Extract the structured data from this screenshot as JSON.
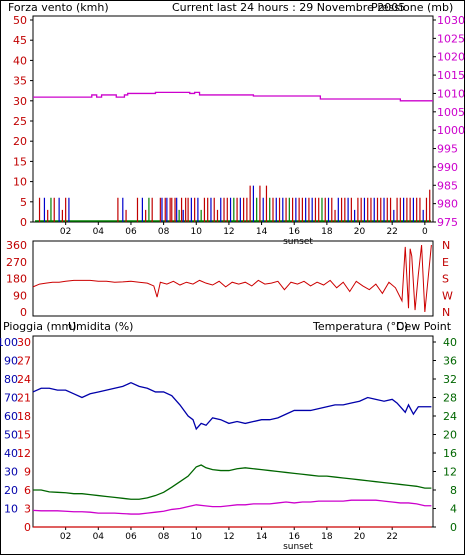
{
  "header": {
    "wind_label": "Forza vento (kmh)",
    "title": "Current last 24 hours : 29 Novembre 2005",
    "pressure_label": "Pressione (mb)"
  },
  "footer_labels": {
    "sunset": "sunset"
  },
  "lower_header": {
    "rain_label": "Pioggia (mm)",
    "humidity_label": "Umidita (%)",
    "temp_label": "Temperatura (°C)",
    "dewpoint_label": "Dew Point"
  },
  "colors": {
    "wind": "#c00000",
    "pressure": "#cc00cc",
    "gust": "#0000cc",
    "calm": "#008000",
    "direction": "#cc0000",
    "rain": "#cc0000",
    "humidity": "#0000aa",
    "temperature": "#006600",
    "dewpoint": "#cc00cc",
    "temp_axis": "#006600",
    "frame": "#000000"
  },
  "chart_data": [
    {
      "id": "wind_pressure",
      "type": "line",
      "x_ticks": [
        "02",
        "04",
        "06",
        "08",
        "10",
        "12",
        "14",
        "16",
        "18",
        "20",
        "22",
        "0"
      ],
      "x_hours": [
        2,
        4,
        6,
        8,
        10,
        12,
        14,
        16,
        18,
        20,
        22,
        24
      ],
      "xlim": [
        0,
        24.5
      ],
      "left_axis": {
        "label": "Forza vento (kmh)",
        "ticks": [
          0,
          5,
          10,
          15,
          20,
          25,
          30,
          35,
          40,
          45,
          50
        ],
        "range": [
          0,
          50
        ]
      },
      "right_axis": {
        "label": "Pressione (mb)",
        "ticks": [
          975,
          980,
          985,
          990,
          995,
          1000,
          1005,
          1010,
          1015,
          1020,
          1025,
          1030
        ],
        "range": [
          975,
          1030
        ]
      },
      "series": [
        {
          "name": "Pressione (mb)",
          "axis": "right",
          "x": [
            0,
            3.6,
            3.6,
            3.9,
            3.9,
            4.2,
            4.2,
            5.1,
            5.1,
            5.6,
            5.6,
            5.8,
            5.8,
            7.5,
            7.5,
            9.6,
            9.6,
            9.9,
            9.9,
            10.2,
            10.2,
            13.5,
            13.5,
            17.6,
            17.6,
            22.5,
            22.5,
            24.5
          ],
          "y": [
            1009,
            1009,
            1009.6,
            1009.6,
            1009,
            1009,
            1009.6,
            1009.6,
            1009,
            1009,
            1009.6,
            1009.6,
            1010,
            1010,
            1010.3,
            1010.3,
            1010,
            1010,
            1010.3,
            1010.3,
            1009.6,
            1009.6,
            1009.3,
            1009.3,
            1008.5,
            1008.5,
            1008,
            1008
          ]
        }
      ],
      "bars_note": "vertical bars of wind speed and gust from about 00:30 to 24:30",
      "wind_events": [
        [
          0.4,
          6,
          0
        ],
        [
          0.7,
          6,
          1
        ],
        [
          0.9,
          3,
          0
        ],
        [
          1.1,
          6,
          2
        ],
        [
          1.3,
          6,
          0
        ],
        [
          1.6,
          6,
          1
        ],
        [
          1.8,
          3,
          0
        ],
        [
          2.0,
          6,
          0
        ],
        [
          2.2,
          6,
          1
        ],
        [
          5.2,
          6,
          0
        ],
        [
          5.5,
          6,
          1
        ],
        [
          5.7,
          3,
          0
        ],
        [
          6.4,
          6,
          0
        ],
        [
          6.7,
          6,
          1
        ],
        [
          6.9,
          3,
          0
        ],
        [
          7.1,
          6,
          2
        ],
        [
          7.3,
          6,
          0
        ],
        [
          7.8,
          6,
          0
        ],
        [
          7.9,
          6,
          1
        ],
        [
          8.1,
          6,
          0
        ],
        [
          8.2,
          6,
          1
        ],
        [
          8.4,
          6,
          0
        ],
        [
          8.5,
          6,
          0
        ],
        [
          8.7,
          6,
          0
        ],
        [
          8.8,
          6,
          1
        ],
        [
          8.95,
          3,
          2
        ],
        [
          9.1,
          6,
          0
        ],
        [
          9.2,
          3,
          1
        ],
        [
          9.35,
          6,
          0
        ],
        [
          9.5,
          6,
          0
        ],
        [
          9.7,
          6,
          1
        ],
        [
          9.9,
          6,
          0
        ],
        [
          10.1,
          6,
          1
        ],
        [
          10.3,
          3,
          2
        ],
        [
          10.5,
          6,
          0
        ],
        [
          10.7,
          6,
          0
        ],
        [
          10.9,
          6,
          1
        ],
        [
          11.1,
          6,
          0
        ],
        [
          11.3,
          3,
          0
        ],
        [
          11.5,
          6,
          1
        ],
        [
          11.7,
          6,
          0
        ],
        [
          11.9,
          6,
          0
        ],
        [
          12.1,
          6,
          1
        ],
        [
          12.3,
          6,
          2
        ],
        [
          12.5,
          6,
          0
        ],
        [
          12.7,
          6,
          1
        ],
        [
          12.9,
          6,
          0
        ],
        [
          13.1,
          6,
          0
        ],
        [
          13.3,
          9,
          0
        ],
        [
          13.5,
          9,
          1
        ],
        [
          13.7,
          6,
          2
        ],
        [
          13.9,
          9,
          0
        ],
        [
          14.1,
          6,
          1
        ],
        [
          14.3,
          9,
          0
        ],
        [
          14.5,
          6,
          2
        ],
        [
          14.7,
          6,
          0
        ],
        [
          14.9,
          6,
          1
        ],
        [
          15.1,
          6,
          0
        ],
        [
          15.3,
          6,
          1
        ],
        [
          15.5,
          6,
          0
        ],
        [
          15.7,
          6,
          2
        ],
        [
          15.9,
          6,
          0
        ],
        [
          16.1,
          6,
          1
        ],
        [
          16.3,
          6,
          0
        ],
        [
          16.5,
          6,
          0
        ],
        [
          16.7,
          6,
          1
        ],
        [
          16.9,
          6,
          0
        ],
        [
          17.1,
          6,
          1
        ],
        [
          17.3,
          6,
          0
        ],
        [
          17.5,
          6,
          0
        ],
        [
          17.7,
          6,
          2
        ],
        [
          17.9,
          6,
          0
        ],
        [
          18.1,
          6,
          1
        ],
        [
          18.3,
          6,
          0
        ],
        [
          18.5,
          3,
          0
        ],
        [
          18.7,
          6,
          1
        ],
        [
          18.9,
          6,
          0
        ],
        [
          19.1,
          6,
          0
        ],
        [
          19.3,
          6,
          1
        ],
        [
          19.5,
          6,
          0
        ],
        [
          19.7,
          3,
          1
        ],
        [
          19.9,
          6,
          0
        ],
        [
          20.1,
          6,
          0
        ],
        [
          20.3,
          6,
          1
        ],
        [
          20.5,
          6,
          0
        ],
        [
          20.7,
          6,
          0
        ],
        [
          20.9,
          6,
          1
        ],
        [
          21.1,
          6,
          0
        ],
        [
          21.3,
          6,
          0
        ],
        [
          21.5,
          6,
          1
        ],
        [
          21.7,
          6,
          0
        ],
        [
          21.9,
          6,
          0
        ],
        [
          22.1,
          3,
          1
        ],
        [
          22.3,
          6,
          0
        ],
        [
          22.5,
          6,
          0
        ],
        [
          22.7,
          6,
          1
        ],
        [
          22.9,
          6,
          0
        ],
        [
          23.1,
          6,
          0
        ],
        [
          23.3,
          6,
          1
        ],
        [
          23.5,
          6,
          0
        ],
        [
          23.7,
          6,
          0
        ],
        [
          23.9,
          3,
          1
        ],
        [
          24.1,
          6,
          0
        ],
        [
          24.3,
          8,
          0
        ]
      ]
    },
    {
      "id": "wind_direction",
      "type": "line",
      "left_axis": {
        "ticks": [
          0,
          90,
          180,
          270,
          360
        ],
        "range": [
          0,
          360
        ]
      },
      "right_axis": {
        "ticks": [
          "N",
          "E",
          "S",
          "W",
          "N"
        ]
      },
      "series": [
        {
          "name": "Direzione",
          "x": [
            0,
            0.4,
            0.8,
            1.2,
            1.6,
            2,
            2.5,
            3,
            3.5,
            4,
            4.5,
            5,
            5.5,
            6,
            6.5,
            7,
            7.4,
            7.6,
            7.8,
            8.2,
            8.6,
            9,
            9.4,
            9.8,
            10.2,
            10.6,
            11,
            11.4,
            11.8,
            12.2,
            12.6,
            13,
            13.4,
            13.8,
            14.2,
            14.6,
            15,
            15.4,
            15.8,
            16.2,
            16.6,
            17,
            17.4,
            17.8,
            18.2,
            18.6,
            19,
            19.4,
            19.8,
            20.2,
            20.6,
            21,
            21.4,
            21.8,
            22.2,
            22.6,
            22.8,
            23,
            23.1,
            23.2,
            23.4,
            23.6,
            23.8,
            24,
            24.2,
            24.4
          ],
          "y": [
            135,
            150,
            155,
            160,
            160,
            165,
            170,
            170,
            170,
            165,
            165,
            160,
            162,
            165,
            160,
            155,
            140,
            80,
            160,
            150,
            165,
            145,
            160,
            150,
            170,
            155,
            145,
            165,
            135,
            160,
            150,
            160,
            140,
            170,
            150,
            155,
            165,
            120,
            160,
            150,
            165,
            140,
            160,
            145,
            170,
            130,
            160,
            110,
            165,
            140,
            120,
            150,
            100,
            160,
            130,
            60,
            350,
            20,
            340,
            300,
            10,
            200,
            360,
            0,
            180,
            360
          ]
        }
      ]
    },
    {
      "id": "rain_humidity_temp",
      "type": "line",
      "x_ticks": [
        "02",
        "04",
        "06",
        "08",
        "10",
        "12",
        "14",
        "16",
        "18",
        "20",
        "22"
      ],
      "x_hours": [
        2,
        4,
        6,
        8,
        10,
        12,
        14,
        16,
        18,
        20,
        22
      ],
      "xlim": [
        0,
        24.5
      ],
      "rain_axis": {
        "label": "Pioggia (mm)",
        "ticks": [
          0,
          3,
          6,
          9,
          12,
          15,
          18,
          21,
          24,
          27,
          30
        ],
        "range": [
          0,
          30
        ]
      },
      "humidity_axis": {
        "label": "Umidita (%)",
        "ticks": [
          10,
          20,
          30,
          40,
          50,
          60,
          70,
          80,
          90,
          100
        ],
        "range": [
          0,
          100
        ]
      },
      "temp_axis": {
        "label": "Temperatura (°C)",
        "ticks": [
          0,
          4,
          8,
          12,
          16,
          20,
          24,
          28,
          32,
          36,
          40
        ],
        "range": [
          0,
          40
        ]
      },
      "series": [
        {
          "name": "Umidita (%)",
          "axis": "humidity",
          "x": [
            0,
            0.5,
            1,
            1.5,
            2,
            2.5,
            3,
            3.5,
            4,
            4.5,
            5,
            5.5,
            6,
            6.5,
            7,
            7.5,
            8,
            8.5,
            9,
            9.5,
            9.8,
            10,
            10.3,
            10.6,
            11,
            11.5,
            12,
            12.5,
            13,
            13.5,
            14,
            14.5,
            15,
            15.5,
            16,
            16.5,
            17,
            17.5,
            18,
            18.5,
            19,
            19.5,
            20,
            20.5,
            21,
            21.5,
            22,
            22.3,
            22.6,
            22.8,
            23,
            23.3,
            23.6,
            24,
            24.4
          ],
          "y": [
            73,
            75,
            75,
            74,
            74,
            72,
            70,
            72,
            73,
            74,
            75,
            76,
            78,
            76,
            75,
            73,
            73,
            71,
            66,
            60,
            58,
            53,
            56,
            55,
            59,
            58,
            56,
            57,
            56,
            57,
            58,
            58,
            59,
            61,
            63,
            63,
            63,
            64,
            65,
            66,
            66,
            67,
            68,
            70,
            69,
            68,
            69,
            67,
            64,
            62,
            66,
            61,
            65,
            65,
            65
          ]
        },
        {
          "name": "Temperatura (°C)",
          "axis": "temp",
          "x": [
            0,
            0.5,
            1,
            1.5,
            2,
            2.5,
            3,
            3.5,
            4,
            4.5,
            5,
            5.5,
            6,
            6.5,
            7,
            7.5,
            8,
            8.5,
            9,
            9.5,
            10,
            10.3,
            10.6,
            11,
            11.5,
            12,
            12.5,
            13,
            13.5,
            14,
            14.5,
            15,
            15.5,
            16,
            16.5,
            17,
            17.5,
            18,
            18.5,
            19,
            19.5,
            20,
            20.5,
            21,
            21.5,
            22,
            22.5,
            23,
            23.5,
            24,
            24.4
          ],
          "y": [
            8,
            8,
            7.6,
            7.5,
            7.4,
            7.2,
            7.2,
            7,
            6.8,
            6.6,
            6.4,
            6.2,
            6,
            6,
            6.3,
            6.8,
            7.5,
            8.6,
            9.8,
            11,
            13,
            13.4,
            12.8,
            12.4,
            12.2,
            12.2,
            12.6,
            12.8,
            12.6,
            12.4,
            12.2,
            12,
            11.8,
            11.6,
            11.4,
            11.2,
            11,
            11,
            10.8,
            10.6,
            10.4,
            10.2,
            10,
            9.8,
            9.6,
            9.4,
            9.2,
            9,
            8.8,
            8.4,
            8.4
          ]
        },
        {
          "name": "Dew Point",
          "axis": "temp",
          "x": [
            0,
            0.5,
            1,
            1.5,
            2,
            2.5,
            3,
            3.5,
            4,
            4.5,
            5,
            5.5,
            6,
            6.5,
            7,
            7.5,
            8,
            8.5,
            9,
            9.5,
            10,
            10.5,
            11,
            11.5,
            12,
            12.5,
            13,
            13.5,
            14,
            14.5,
            15,
            15.5,
            16,
            16.5,
            17,
            17.5,
            18,
            18.5,
            19,
            19.5,
            20,
            20.5,
            21,
            21.5,
            22,
            22.5,
            23,
            23.5,
            24,
            24.4
          ],
          "y": [
            3.6,
            3.5,
            3.5,
            3.5,
            3.4,
            3.3,
            3.3,
            3.2,
            3,
            3,
            3,
            2.9,
            2.8,
            2.8,
            3,
            3.2,
            3.4,
            3.8,
            4,
            4.4,
            4.8,
            4.6,
            4.4,
            4.4,
            4.6,
            4.8,
            4.8,
            5,
            5,
            5,
            5.2,
            5.4,
            5.2,
            5.4,
            5.4,
            5.6,
            5.6,
            5.6,
            5.6,
            5.8,
            5.8,
            5.8,
            5.8,
            5.6,
            5.4,
            5.2,
            5.2,
            5,
            4.6,
            4.6
          ]
        },
        {
          "name": "Pioggia (mm)",
          "axis": "rain",
          "x": [
            0,
            24.4
          ],
          "y": [
            0,
            0
          ]
        }
      ]
    }
  ]
}
